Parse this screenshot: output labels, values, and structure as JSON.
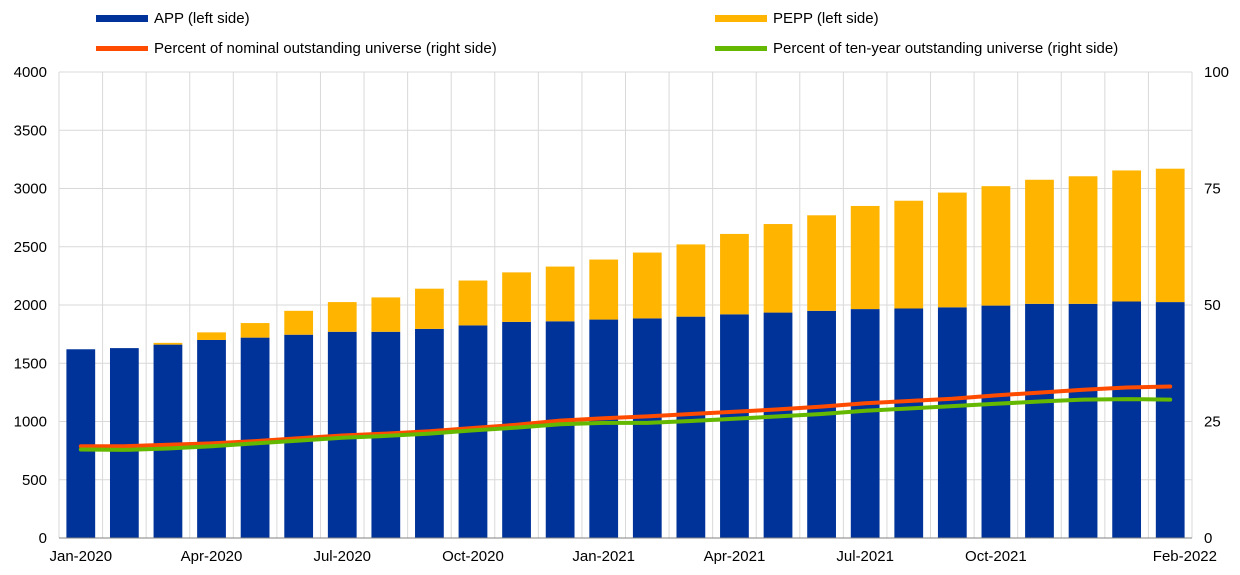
{
  "chart_data": {
    "type": "bar",
    "stacked": true,
    "categories": [
      "Jan-2020",
      "Feb-2020",
      "Mar-2020",
      "Apr-2020",
      "May-2020",
      "Jun-2020",
      "Jul-2020",
      "Aug-2020",
      "Sep-2020",
      "Oct-2020",
      "Nov-2020",
      "Dec-2020",
      "Jan-2021",
      "Feb-2021",
      "Mar-2021",
      "Apr-2021",
      "May-2021",
      "Jun-2021",
      "Jul-2021",
      "Aug-2021",
      "Sep-2021",
      "Oct-2021",
      "Nov-2021",
      "Dec-2021",
      "Jan-2022",
      "Feb-2022"
    ],
    "x_tick_labels": [
      {
        "index": 0,
        "label": "Jan-2020"
      },
      {
        "index": 3,
        "label": "Apr-2020"
      },
      {
        "index": 6,
        "label": "Jul-2020"
      },
      {
        "index": 9,
        "label": "Oct-2020"
      },
      {
        "index": 12,
        "label": "Jan-2021"
      },
      {
        "index": 15,
        "label": "Apr-2021"
      },
      {
        "index": 18,
        "label": "Jul-2021"
      },
      {
        "index": 21,
        "label": "Oct-2021"
      },
      {
        "index": 25,
        "label": "Feb-2022"
      }
    ],
    "bar_series": [
      {
        "name": "APP (left side)",
        "color": "#003399",
        "values": [
          1620,
          1630,
          1660,
          1700,
          1720,
          1745,
          1770,
          1770,
          1795,
          1825,
          1855,
          1860,
          1875,
          1885,
          1900,
          1920,
          1935,
          1950,
          1965,
          1970,
          1980,
          1995,
          2010,
          2010,
          2030,
          2025
        ]
      },
      {
        "name": "PEPP (left side)",
        "color": "#ffb400",
        "values": [
          0,
          0,
          15,
          65,
          125,
          205,
          255,
          295,
          345,
          385,
          425,
          470,
          515,
          565,
          620,
          690,
          760,
          820,
          885,
          925,
          985,
          1025,
          1065,
          1095,
          1125,
          1145
        ]
      }
    ],
    "line_series": [
      {
        "name": "Percent of nominal outstanding universe (right side)",
        "color": "#ff4b00",
        "axis": "right",
        "values": [
          19.7,
          19.7,
          20.0,
          20.3,
          20.8,
          21.4,
          22.0,
          22.4,
          22.9,
          23.6,
          24.3,
          25.2,
          25.7,
          26.1,
          26.6,
          27.1,
          27.6,
          28.2,
          28.9,
          29.4,
          29.9,
          30.6,
          31.2,
          31.8,
          32.3,
          32.5
        ]
      },
      {
        "name": "Percent of ten-year outstanding universe (right side)",
        "color": "#65b800",
        "axis": "right",
        "values": [
          19.0,
          18.9,
          19.2,
          19.7,
          20.3,
          20.9,
          21.5,
          21.9,
          22.4,
          23.1,
          23.7,
          24.4,
          24.7,
          24.7,
          25.1,
          25.6,
          26.1,
          26.6,
          27.3,
          27.8,
          28.3,
          28.8,
          29.3,
          29.7,
          29.8,
          29.7
        ]
      }
    ],
    "left_axis": {
      "min": 0,
      "max": 4000,
      "ticks": [
        "0",
        "500",
        "1000",
        "1500",
        "2000",
        "2500",
        "3000",
        "3500",
        "4000"
      ]
    },
    "right_axis": {
      "min": 0,
      "max": 100,
      "ticks": [
        "0",
        "25",
        "50",
        "75",
        "100"
      ]
    },
    "legend_placement": "top",
    "grid": true,
    "title": "",
    "xlabel": "",
    "ylabel": ""
  }
}
